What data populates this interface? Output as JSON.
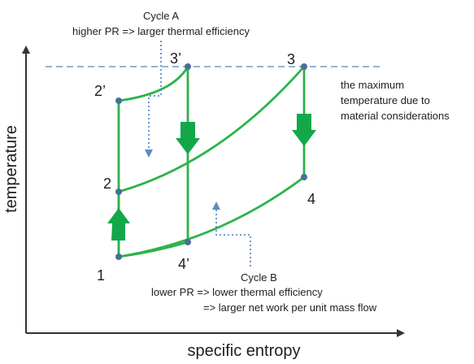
{
  "axes": {
    "x_label": "specific entropy",
    "y_label": "temperature"
  },
  "max_temp_note": {
    "line1": "the maximum",
    "line2": "temperature due to",
    "line3": "material considerations"
  },
  "cycle_a": {
    "title": "Cycle A",
    "desc": "higher PR => larger thermal efficiency"
  },
  "cycle_b": {
    "title": "Cycle B",
    "desc1": "lower PR => lower thermal efficiency",
    "desc2": "=> larger net work per unit mass flow"
  },
  "points": {
    "p1": "1",
    "p2": "2",
    "p2p": "2’",
    "p3": "3",
    "p3p": "3’",
    "p4": "4",
    "p4p": "4’"
  },
  "colors": {
    "curve": "#2db34a",
    "arrow_fill": "#12a84a",
    "marker": "#4a6e96",
    "dashed_line": "#6f9ec6",
    "dotted_leader": "#5b8cc4",
    "axis": "#333333"
  }
}
